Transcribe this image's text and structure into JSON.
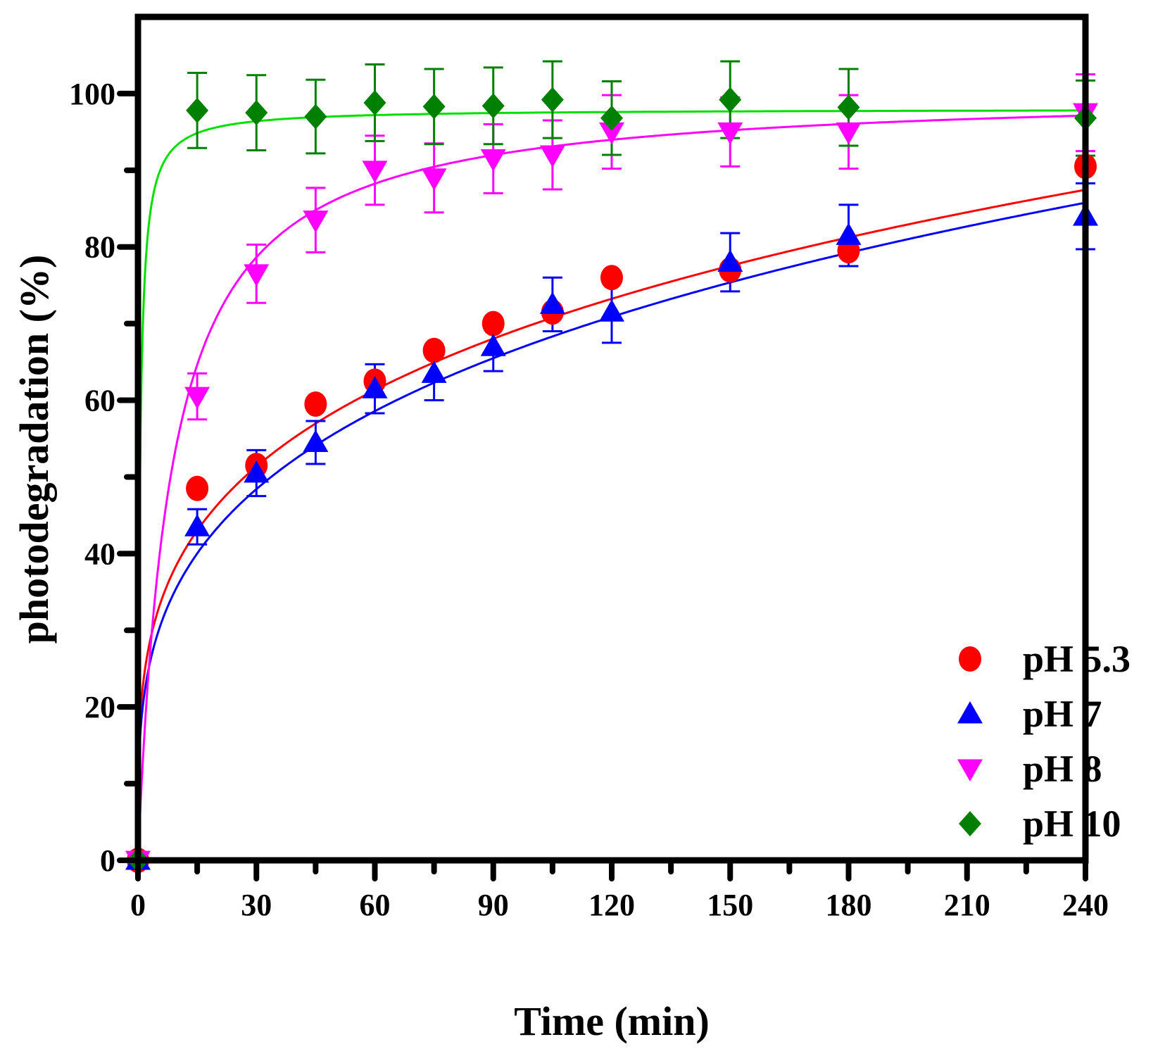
{
  "chart_data": {
    "type": "scatter",
    "title": "",
    "xlabel": "Time (min)",
    "ylabel": "photodegradation (%)",
    "xlim": [
      0,
      240
    ],
    "ylim": [
      0,
      110
    ],
    "x_ticks": [
      0,
      30,
      60,
      90,
      120,
      150,
      180,
      210,
      240
    ],
    "y_ticks": [
      0,
      20,
      40,
      60,
      80,
      100
    ],
    "x_tick_labels": [
      "0",
      "30",
      "60",
      "90",
      "120",
      "150",
      "180",
      "210",
      "240"
    ],
    "y_tick_labels": [
      "0",
      "20",
      "40",
      "60",
      "80",
      "100"
    ],
    "grid": false,
    "legend_position": "bottom-right",
    "series": [
      {
        "name": "pH 5.3",
        "marker": "circle",
        "color": "#ff0000",
        "x": [
          0,
          15,
          30,
          45,
          60,
          75,
          90,
          105,
          120,
          150,
          180,
          240
        ],
        "y": [
          0,
          48.5,
          51.5,
          59.5,
          62.5,
          66.5,
          70.0,
          71.5,
          76.0,
          77.0,
          79.5,
          90.5
        ],
        "error": [
          0,
          0,
          0,
          0,
          0,
          0,
          0,
          0,
          0,
          0,
          0,
          0
        ],
        "fit": "freundlich",
        "fit_params": {
          "k": 21.5,
          "n": 0.256
        }
      },
      {
        "name": "pH 7",
        "marker": "triangle-up",
        "color": "#0000ff",
        "x": [
          0,
          15,
          30,
          45,
          60,
          75,
          90,
          105,
          120,
          150,
          180,
          240
        ],
        "y": [
          0,
          43.5,
          50.5,
          54.5,
          61.5,
          63.5,
          67.0,
          72.5,
          71.5,
          78.0,
          81.5,
          84.0
        ],
        "error": [
          0,
          2.3,
          3.0,
          2.8,
          3.2,
          3.5,
          3.2,
          3.5,
          4.0,
          3.8,
          4.0,
          4.3
        ],
        "fit": "freundlich",
        "fit_params": {
          "k": 19.0,
          "n": 0.275
        }
      },
      {
        "name": "pH 8",
        "marker": "triangle-down",
        "color": "#ff00ff",
        "x": [
          0,
          15,
          30,
          45,
          60,
          75,
          90,
          105,
          120,
          150,
          180,
          240
        ],
        "y": [
          0,
          60.5,
          76.5,
          83.5,
          90.0,
          89.0,
          91.5,
          92.0,
          95.0,
          95.0,
          95.0,
          97.5
        ],
        "error": [
          0,
          3.0,
          3.8,
          4.2,
          4.5,
          4.5,
          4.5,
          4.5,
          4.8,
          4.5,
          4.8,
          5.0
        ],
        "fit": "langmuir",
        "fit_params": {
          "qmax": 100.5,
          "b": 0.12
        }
      },
      {
        "name": "pH 10",
        "marker": "diamond",
        "color": "#008000",
        "x": [
          0,
          15,
          30,
          45,
          60,
          75,
          90,
          105,
          120,
          150,
          180,
          240
        ],
        "y": [
          0,
          97.8,
          97.5,
          97.0,
          98.8,
          98.3,
          98.4,
          99.2,
          96.8,
          99.2,
          98.2,
          96.8
        ],
        "error": [
          0,
          4.9,
          4.9,
          4.8,
          5.0,
          4.9,
          5.0,
          5.0,
          4.8,
          5.0,
          5.0,
          4.9
        ],
        "fit": "langmuir",
        "fit_params": {
          "qmax": 98.0,
          "b": 2.0
        }
      }
    ],
    "fit_colors": {
      "pH 5.3": "#ff0000",
      "pH 7": "#0000ff",
      "pH 8": "#ff00ff",
      "pH 10": "#00e000"
    }
  }
}
